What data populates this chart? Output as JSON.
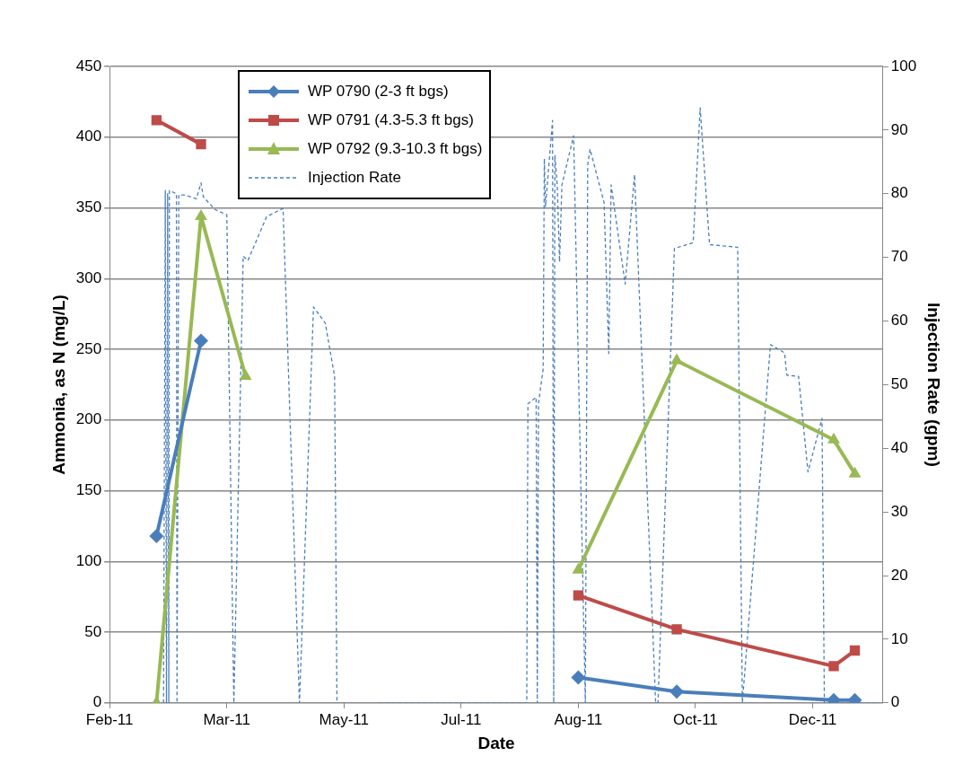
{
  "chart_data": {
    "type": "line",
    "xlabel": "Date",
    "ylabel": "Ammonia, as N (mg/L)",
    "y2label": "Injection Rate (gpm)",
    "xlim": [
      "2011-02-05",
      "2012-01-01"
    ],
    "xticks": [
      {
        "value": "2011-02-05",
        "label": "Feb-11"
      },
      {
        "value": "2011-03-27",
        "label": "Mar-11"
      },
      {
        "value": "2011-05-16",
        "label": "May-11"
      },
      {
        "value": "2011-07-05",
        "label": "Jul-11"
      },
      {
        "value": "2011-08-24",
        "label": "Aug-11"
      },
      {
        "value": "2011-10-13",
        "label": "Oct-11"
      },
      {
        "value": "2011-12-02",
        "label": "Dec-11"
      }
    ],
    "ylim": [
      0,
      450
    ],
    "yticks": [
      0,
      50,
      100,
      150,
      200,
      250,
      300,
      350,
      400,
      450
    ],
    "y2lim": [
      0,
      100
    ],
    "y2ticks": [
      0,
      10,
      20,
      30,
      40,
      50,
      60,
      70,
      80,
      90,
      100
    ],
    "grid": "y",
    "legend": "top left",
    "series": [
      {
        "name": "WP 0790 (2-3 ft bgs)",
        "color": "#4a7ebb",
        "marker": "diamond",
        "line_style": "solid",
        "x": [
          "2011-02-25",
          "2011-03-16",
          "2011-06-01",
          "2011-08-24",
          "2011-10-05",
          "2011-12-11",
          "2011-12-20"
        ],
        "values": [
          118,
          256,
          null,
          18,
          8,
          2,
          2
        ]
      },
      {
        "name": "WP 0791 (4.3-5.3 ft bgs)",
        "color": "#be4b48",
        "marker": "square",
        "line_style": "solid",
        "x": [
          "2011-02-25",
          "2011-03-16",
          "2011-06-01",
          "2011-08-24",
          "2011-10-05",
          "2011-12-11",
          "2011-12-20"
        ],
        "values": [
          412,
          395,
          null,
          76,
          52,
          26,
          37
        ]
      },
      {
        "name": "WP 0792 (9.3-10.3 ft bgs)",
        "color": "#98b954",
        "marker": "triangle",
        "line_style": "solid",
        "x": [
          "2011-02-25",
          "2011-03-16",
          "2011-04-04",
          "2011-06-01",
          "2011-08-24",
          "2011-10-05",
          "2011-12-11",
          "2011-12-20"
        ],
        "values": [
          0,
          344,
          231,
          null,
          94,
          242,
          186,
          162
        ]
      },
      {
        "name": "Injection Rate",
        "color": "#4a7ebb",
        "marker": "none",
        "line_style": "dashed",
        "axis": "y2",
        "x": [
          "2011-02-28T00:00",
          "2011-02-28T18:00",
          "2011-03-01T06:00",
          "2011-03-01T18:00",
          "2011-03-02T06:00",
          "2011-03-02T12:00",
          "2011-03-05T12:00",
          "2011-03-05T18:00",
          "2011-03-06T12:00",
          "2011-03-09",
          "2011-03-14",
          "2011-03-16",
          "2011-03-17",
          "2011-03-22",
          "2011-03-27",
          "2011-03-30",
          "2011-04-03",
          "2011-04-05",
          "2011-04-13",
          "2011-04-20",
          "2011-04-27",
          "2011-05-03",
          "2011-05-08",
          "2011-05-12",
          "2011-05-13",
          "2011-05-20",
          "2011-05-31",
          "2011-08-02",
          "2011-08-02T12:00",
          "2011-08-06",
          "2011-08-06T12:00",
          "2011-08-07",
          "2011-08-09",
          "2011-08-09T12:00",
          "2011-08-10",
          "2011-08-13",
          "2011-08-13T12:00",
          "2011-08-14",
          "2011-08-15",
          "2011-08-16",
          "2011-08-17",
          "2011-08-22",
          "2011-08-27",
          "2011-08-28",
          "2011-08-29",
          "2011-09-04",
          "2011-09-06",
          "2011-09-07",
          "2011-09-13",
          "2011-09-17",
          "2011-09-26",
          "2011-09-27",
          "2011-10-04",
          "2011-10-12",
          "2011-10-15",
          "2011-10-19",
          "2011-10-31",
          "2011-11-02",
          "2011-11-14",
          "2011-11-20",
          "2011-11-21",
          "2011-11-26",
          "2011-11-30",
          "2011-12-06",
          "2011-12-07",
          "2011-12-30"
        ],
        "values": [
          0,
          80.5,
          0,
          80,
          0,
          80.5,
          80,
          0,
          79.8,
          79.8,
          79.2,
          81.7,
          79.5,
          77.5,
          76.7,
          0,
          70.2,
          69.5,
          76.4,
          77.7,
          0,
          62.2,
          59.7,
          51.3,
          0,
          null,
          0,
          0,
          47,
          48,
          0,
          47,
          52.5,
          85.5,
          78,
          91.5,
          0,
          86,
          81.4,
          69.3,
          81.4,
          89.1,
          0,
          84.5,
          87,
          78.6,
          54.9,
          81.4,
          65.8,
          83,
          0,
          0,
          71.4,
          72.3,
          93.5,
          72,
          71.6,
          0,
          56.3,
          55,
          51.5,
          51.3,
          36.3,
          44.7,
          0,
          0
        ]
      }
    ]
  }
}
